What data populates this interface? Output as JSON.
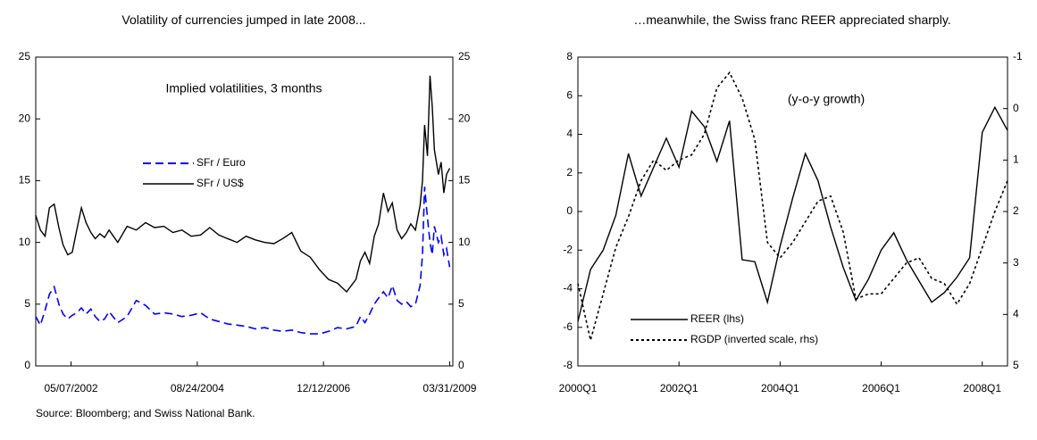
{
  "chart_data": [
    {
      "type": "line",
      "title": "Volatility of currencies jumped in late 2008...",
      "annotation": "Implied volatilities, 3 months",
      "x": [
        "09/14/2001",
        "10/15/2001",
        "11/15/2001",
        "12/14/2001",
        "01/15/2002",
        "02/15/2002",
        "03/15/2002",
        "04/15/2002",
        "05/15/2002",
        "06/14/2002",
        "07/15/2002",
        "08/15/2002",
        "09/16/2002",
        "10/15/2002",
        "11/15/2002",
        "12/16/2002",
        "01/15/2003",
        "03/14/2003",
        "05/15/2003",
        "07/15/2003",
        "09/15/2003",
        "11/14/2003",
        "01/15/2004",
        "03/15/2004",
        "05/14/2004",
        "07/15/2004",
        "09/15/2004",
        "11/15/2004",
        "01/14/2005",
        "03/15/2005",
        "05/16/2005",
        "07/15/2005",
        "09/15/2005",
        "11/15/2005",
        "01/16/2006",
        "03/15/2006",
        "05/15/2006",
        "07/14/2006",
        "09/15/2006",
        "11/15/2006",
        "01/15/2007",
        "03/15/2007",
        "05/15/2007",
        "07/16/2007",
        "08/15/2007",
        "09/14/2007",
        "10/15/2007",
        "11/15/2007",
        "12/14/2007",
        "01/15/2008",
        "02/15/2008",
        "03/14/2008",
        "04/15/2008",
        "05/15/2008",
        "06/16/2008",
        "07/15/2008",
        "08/15/2008",
        "09/15/2008",
        "10/01/2008",
        "10/15/2008",
        "11/03/2008",
        "11/20/2008",
        "12/05/2008",
        "12/19/2008",
        "01/15/2009",
        "02/02/2009",
        "02/20/2009",
        "03/10/2009",
        "03/31/2009"
      ],
      "series": [
        {
          "name": "SFr / Euro",
          "color": "#0000ff",
          "style": "dashed",
          "values": [
            4.0,
            3.3,
            4.5,
            5.8,
            6.4,
            5.0,
            4.2,
            3.8,
            4.1,
            4.3,
            4.7,
            4.2,
            4.6,
            4.0,
            3.6,
            3.8,
            4.4,
            3.5,
            4.0,
            5.3,
            4.9,
            4.2,
            4.3,
            4.2,
            4.0,
            4.1,
            4.3,
            3.8,
            3.6,
            3.4,
            3.3,
            3.2,
            3.0,
            3.1,
            2.9,
            2.8,
            2.9,
            2.7,
            2.6,
            2.6,
            2.8,
            3.1,
            3.0,
            3.2,
            4.0,
            3.5,
            4.2,
            5.0,
            5.5,
            6.0,
            5.5,
            6.5,
            5.3,
            5.0,
            5.2,
            4.8,
            5.0,
            6.5,
            9.0,
            14.5,
            12.0,
            10.0,
            9.0,
            11.3,
            10.0,
            10.5,
            9.0,
            9.5,
            8.0
          ]
        },
        {
          "name": "SFr / US$",
          "color": "#000000",
          "style": "solid",
          "values": [
            12.2,
            11.0,
            10.5,
            12.8,
            13.1,
            11.2,
            9.8,
            9.0,
            9.2,
            11.0,
            12.8,
            11.6,
            10.8,
            10.3,
            10.7,
            10.4,
            11.0,
            10.0,
            11.3,
            11.0,
            11.6,
            11.2,
            11.3,
            10.8,
            11.0,
            10.5,
            10.6,
            11.2,
            10.6,
            10.3,
            10.0,
            10.5,
            10.2,
            10.0,
            9.9,
            10.3,
            10.8,
            9.3,
            8.8,
            7.8,
            7.0,
            6.7,
            6.0,
            7.0,
            8.5,
            9.2,
            8.3,
            10.5,
            11.5,
            14.0,
            12.5,
            13.2,
            11.0,
            10.3,
            10.8,
            11.5,
            11.0,
            13.0,
            15.0,
            19.5,
            17.0,
            23.5,
            21.0,
            17.5,
            15.5,
            16.5,
            14.0,
            15.5,
            16.0
          ]
        }
      ],
      "xlim": [
        "09/14/2001",
        "04/21/2009"
      ],
      "xticks": [
        "05/07/2002",
        "08/24/2004",
        "12/12/2006",
        "03/31/2009"
      ],
      "ylim": [
        0,
        25
      ],
      "yticks": [
        0,
        5,
        10,
        15,
        20,
        25
      ],
      "y2lim": [
        0,
        25
      ],
      "y2ticks": [
        0,
        5,
        10,
        15,
        20,
        25
      ],
      "grid": false
    },
    {
      "type": "line",
      "title": "…meanwhile, the Swiss franc REER appreciated sharply.",
      "annotation": "(y-o-y growth)",
      "categories": [
        "2000Q1",
        null,
        null,
        null,
        null,
        null,
        null,
        null,
        "2002Q1",
        null,
        null,
        null,
        null,
        null,
        null,
        null,
        "2004Q1",
        null,
        null,
        null,
        null,
        null,
        null,
        null,
        "2006Q1",
        null,
        null,
        null,
        null,
        null,
        null,
        null,
        "2008Q1",
        null,
        null
      ],
      "series": [
        {
          "name": "REER (lhs)",
          "color": "#000000",
          "style": "solid",
          "values": [
            -5.7,
            -3.0,
            -2.0,
            -0.2,
            3.0,
            0.8,
            2.3,
            3.8,
            2.3,
            5.2,
            4.4,
            2.6,
            4.7,
            -2.5,
            -2.6,
            -4.7,
            -1.8,
            0.7,
            3.0,
            1.6,
            -0.8,
            -2.9,
            -4.6,
            -3.5,
            -2.0,
            -1.1,
            -2.5,
            -3.6,
            -4.7,
            -4.2,
            -3.4,
            -2.4,
            4.1,
            5.4,
            4.2
          ]
        },
        {
          "name": "RGDP (inverted scale, rhs)",
          "color": "#000000",
          "style": "dotted",
          "axis": "y2",
          "values": [
            3.4,
            4.5,
            3.6,
            2.7,
            2.1,
            1.4,
            1.0,
            1.2,
            1.0,
            0.9,
            0.5,
            -0.4,
            -0.7,
            -0.2,
            0.6,
            2.6,
            2.9,
            2.6,
            2.2,
            1.8,
            1.7,
            2.4,
            3.7,
            3.6,
            3.6,
            3.3,
            3.0,
            2.9,
            3.3,
            3.4,
            3.8,
            3.4,
            2.7,
            2.0,
            1.4
          ]
        }
      ],
      "ylim": [
        -8,
        8
      ],
      "yticks": [
        -8,
        -6,
        -4,
        -2,
        0,
        2,
        4,
        6,
        8
      ],
      "y2lim": [
        5,
        -1
      ],
      "y2ticks": [
        -1,
        0,
        1,
        2,
        3,
        4,
        5
      ],
      "grid": false
    }
  ],
  "source": "Source: Bloomberg; and Swiss National Bank."
}
